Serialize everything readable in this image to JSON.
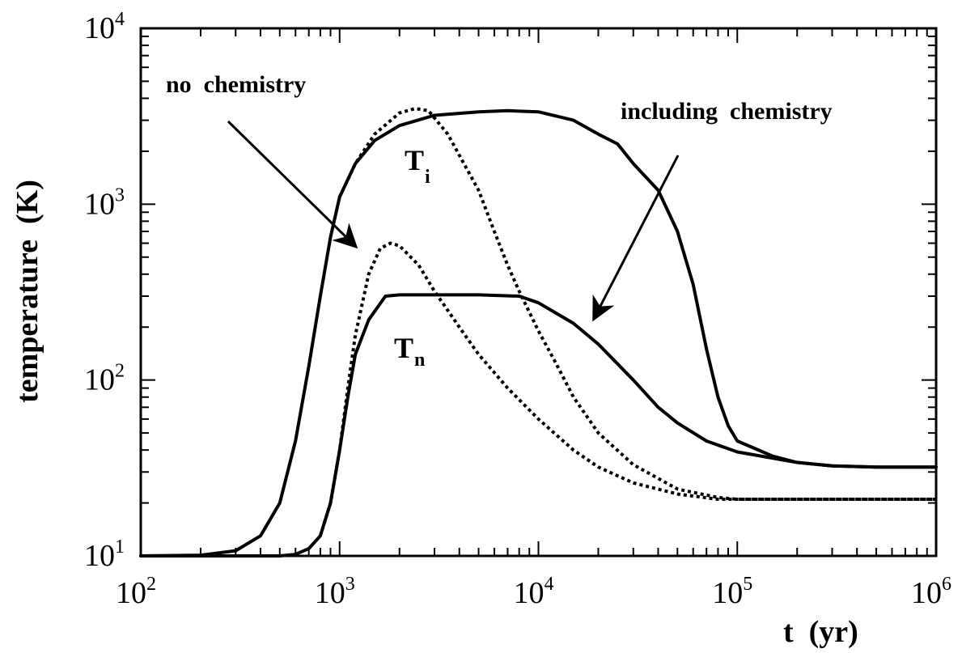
{
  "chart_data": {
    "type": "line",
    "xscale": "log",
    "yscale": "log",
    "xlim": [
      100,
      1000000
    ],
    "ylim": [
      10,
      10000
    ],
    "xlabel": "t  (yr)",
    "ylabel": "temperature  (K)",
    "x_ticks": [
      {
        "base": "10",
        "exp": "2",
        "value": 100
      },
      {
        "base": "10",
        "exp": "3",
        "value": 1000
      },
      {
        "base": "10",
        "exp": "4",
        "value": 10000
      },
      {
        "base": "10",
        "exp": "5",
        "value": 100000
      },
      {
        "base": "10",
        "exp": "6",
        "value": 1000000
      }
    ],
    "y_ticks": [
      {
        "base": "10",
        "exp": "1",
        "value": 10
      },
      {
        "base": "10",
        "exp": "2",
        "value": 100
      },
      {
        "base": "10",
        "exp": "3",
        "value": 1000
      },
      {
        "base": "10",
        "exp": "4",
        "value": 10000
      }
    ],
    "series": [
      {
        "name": "Ti including chemistry",
        "style": "solid",
        "points": [
          [
            100,
            10
          ],
          [
            200,
            10.1
          ],
          [
            300,
            10.7
          ],
          [
            400,
            13
          ],
          [
            500,
            20
          ],
          [
            600,
            45
          ],
          [
            700,
            120
          ],
          [
            800,
            300
          ],
          [
            900,
            650
          ],
          [
            1000,
            1100
          ],
          [
            1200,
            1700
          ],
          [
            1500,
            2300
          ],
          [
            2000,
            2800
          ],
          [
            3000,
            3200
          ],
          [
            5000,
            3350
          ],
          [
            7000,
            3400
          ],
          [
            10000,
            3350
          ],
          [
            15000,
            3000
          ],
          [
            20000,
            2500
          ],
          [
            25000,
            2200
          ],
          [
            30000,
            1700
          ],
          [
            40000,
            1200
          ],
          [
            50000,
            700
          ],
          [
            60000,
            350
          ],
          [
            70000,
            150
          ],
          [
            80000,
            80
          ],
          [
            90000,
            55
          ],
          [
            100000,
            45
          ],
          [
            150000,
            37
          ],
          [
            200000,
            34
          ],
          [
            300000,
            32.5
          ],
          [
            500000,
            32
          ],
          [
            1000000,
            32
          ]
        ]
      },
      {
        "name": "Ti no chemistry",
        "style": "dotted",
        "points": [
          [
            1000,
            1100
          ],
          [
            1200,
            1700
          ],
          [
            1500,
            2500
          ],
          [
            2000,
            3300
          ],
          [
            2400,
            3500
          ],
          [
            2800,
            3400
          ],
          [
            3500,
            2500
          ],
          [
            4000,
            1900
          ],
          [
            5000,
            1200
          ],
          [
            6000,
            700
          ],
          [
            7000,
            450
          ],
          [
            8000,
            320
          ],
          [
            10000,
            190
          ],
          [
            12000,
            130
          ],
          [
            15000,
            80
          ],
          [
            20000,
            50
          ],
          [
            30000,
            33
          ],
          [
            50000,
            24
          ],
          [
            80000,
            21.5
          ],
          [
            100000,
            21
          ],
          [
            300000,
            21
          ],
          [
            1000000,
            21
          ]
        ]
      },
      {
        "name": "Tn including chemistry",
        "style": "solid",
        "points": [
          [
            100,
            10
          ],
          [
            500,
            10
          ],
          [
            600,
            10.2
          ],
          [
            700,
            11
          ],
          [
            800,
            13
          ],
          [
            900,
            20
          ],
          [
            1000,
            40
          ],
          [
            1100,
            80
          ],
          [
            1200,
            140
          ],
          [
            1400,
            220
          ],
          [
            1700,
            300
          ],
          [
            2000,
            305
          ],
          [
            3000,
            305
          ],
          [
            5000,
            305
          ],
          [
            8000,
            300
          ],
          [
            10000,
            275
          ],
          [
            15000,
            210
          ],
          [
            20000,
            160
          ],
          [
            30000,
            100
          ],
          [
            40000,
            70
          ],
          [
            50000,
            57
          ],
          [
            70000,
            45
          ],
          [
            100000,
            39
          ],
          [
            200000,
            34
          ],
          [
            300000,
            32.5
          ],
          [
            500000,
            32
          ],
          [
            1000000,
            32
          ]
        ]
      },
      {
        "name": "Tn no chemistry",
        "style": "dotted",
        "points": [
          [
            800,
            13
          ],
          [
            900,
            20
          ],
          [
            1000,
            40
          ],
          [
            1100,
            90
          ],
          [
            1200,
            180
          ],
          [
            1400,
            400
          ],
          [
            1600,
            560
          ],
          [
            1800,
            600
          ],
          [
            2000,
            580
          ],
          [
            2500,
            450
          ],
          [
            3000,
            320
          ],
          [
            4000,
            200
          ],
          [
            5000,
            140
          ],
          [
            7000,
            90
          ],
          [
            10000,
            60
          ],
          [
            15000,
            40
          ],
          [
            20000,
            32
          ],
          [
            30000,
            26
          ],
          [
            50000,
            22.5
          ],
          [
            80000,
            21
          ],
          [
            100000,
            21
          ],
          [
            1000000,
            21
          ]
        ]
      }
    ],
    "annotations": {
      "no_chemistry": "no  chemistry",
      "including_chemistry": "including  chemistry",
      "ti_main": "T",
      "ti_sub": "i",
      "tn_main": "T",
      "tn_sub": "n"
    }
  }
}
